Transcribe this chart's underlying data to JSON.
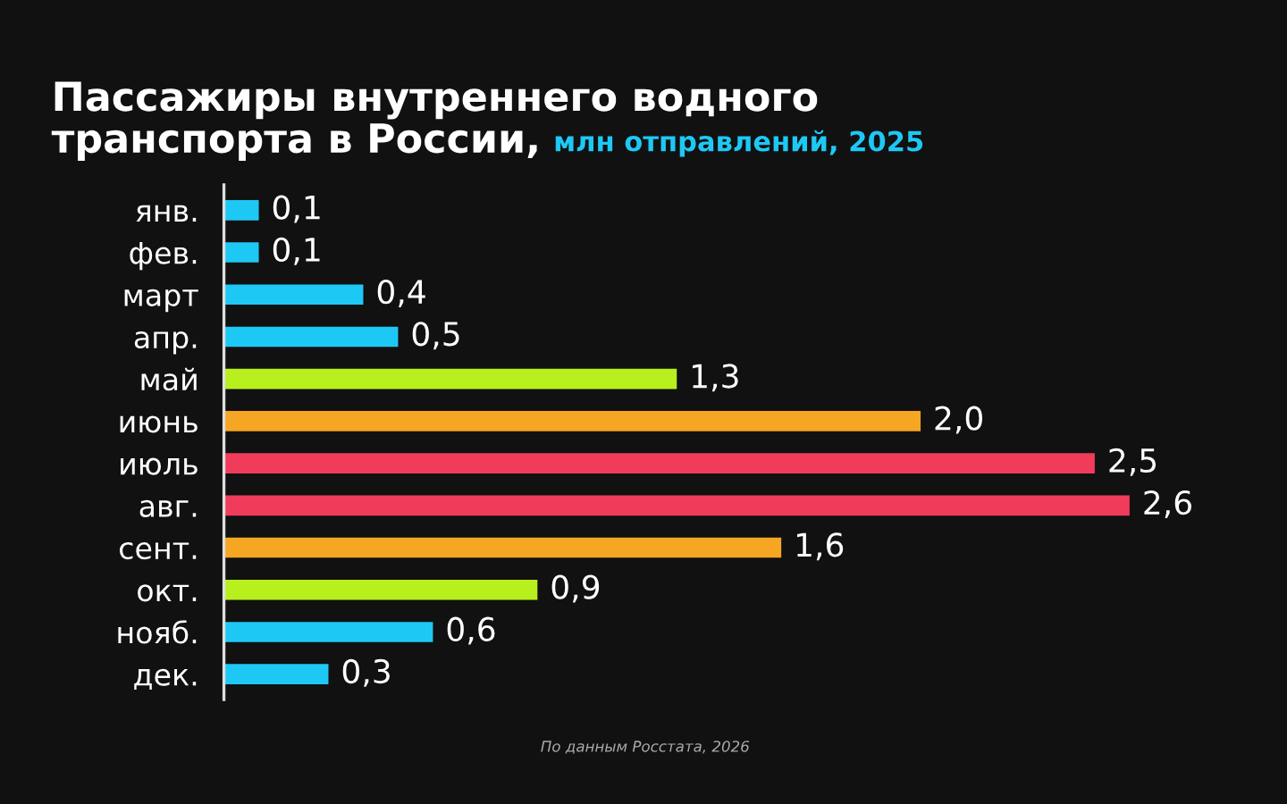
{
  "chart_data": {
    "type": "bar",
    "orientation": "horizontal",
    "title": "Пассажиры внутреннего водного\nтранспорта в России,",
    "subtitle": "млн отправлений, 2025",
    "categories": [
      "янв.",
      "фев.",
      "март",
      "апр.",
      "май",
      "июнь",
      "июль",
      "авг.",
      "сент.",
      "окт.",
      "нояб.",
      "дек."
    ],
    "values": [
      0.1,
      0.1,
      0.4,
      0.5,
      1.3,
      2.0,
      2.5,
      2.6,
      1.6,
      0.9,
      0.6,
      0.3
    ],
    "colors": [
      "#1ec8f5",
      "#1ec8f5",
      "#1ec8f5",
      "#1ec8f5",
      "#b8f01e",
      "#f5a623",
      "#f03c5a",
      "#f03c5a",
      "#f5a623",
      "#b8f01e",
      "#1ec8f5",
      "#1ec8f5"
    ],
    "value_labels": [
      "0,1",
      "0,1",
      "0,4",
      "0,5",
      "1,3",
      "2,0",
      "2,5",
      "2,6",
      "1,6",
      "0,9",
      "0,6",
      "0,3"
    ],
    "annotations": [
      "По данным Росстата, 2026"
    ],
    "legend": false,
    "grid": false
  }
}
